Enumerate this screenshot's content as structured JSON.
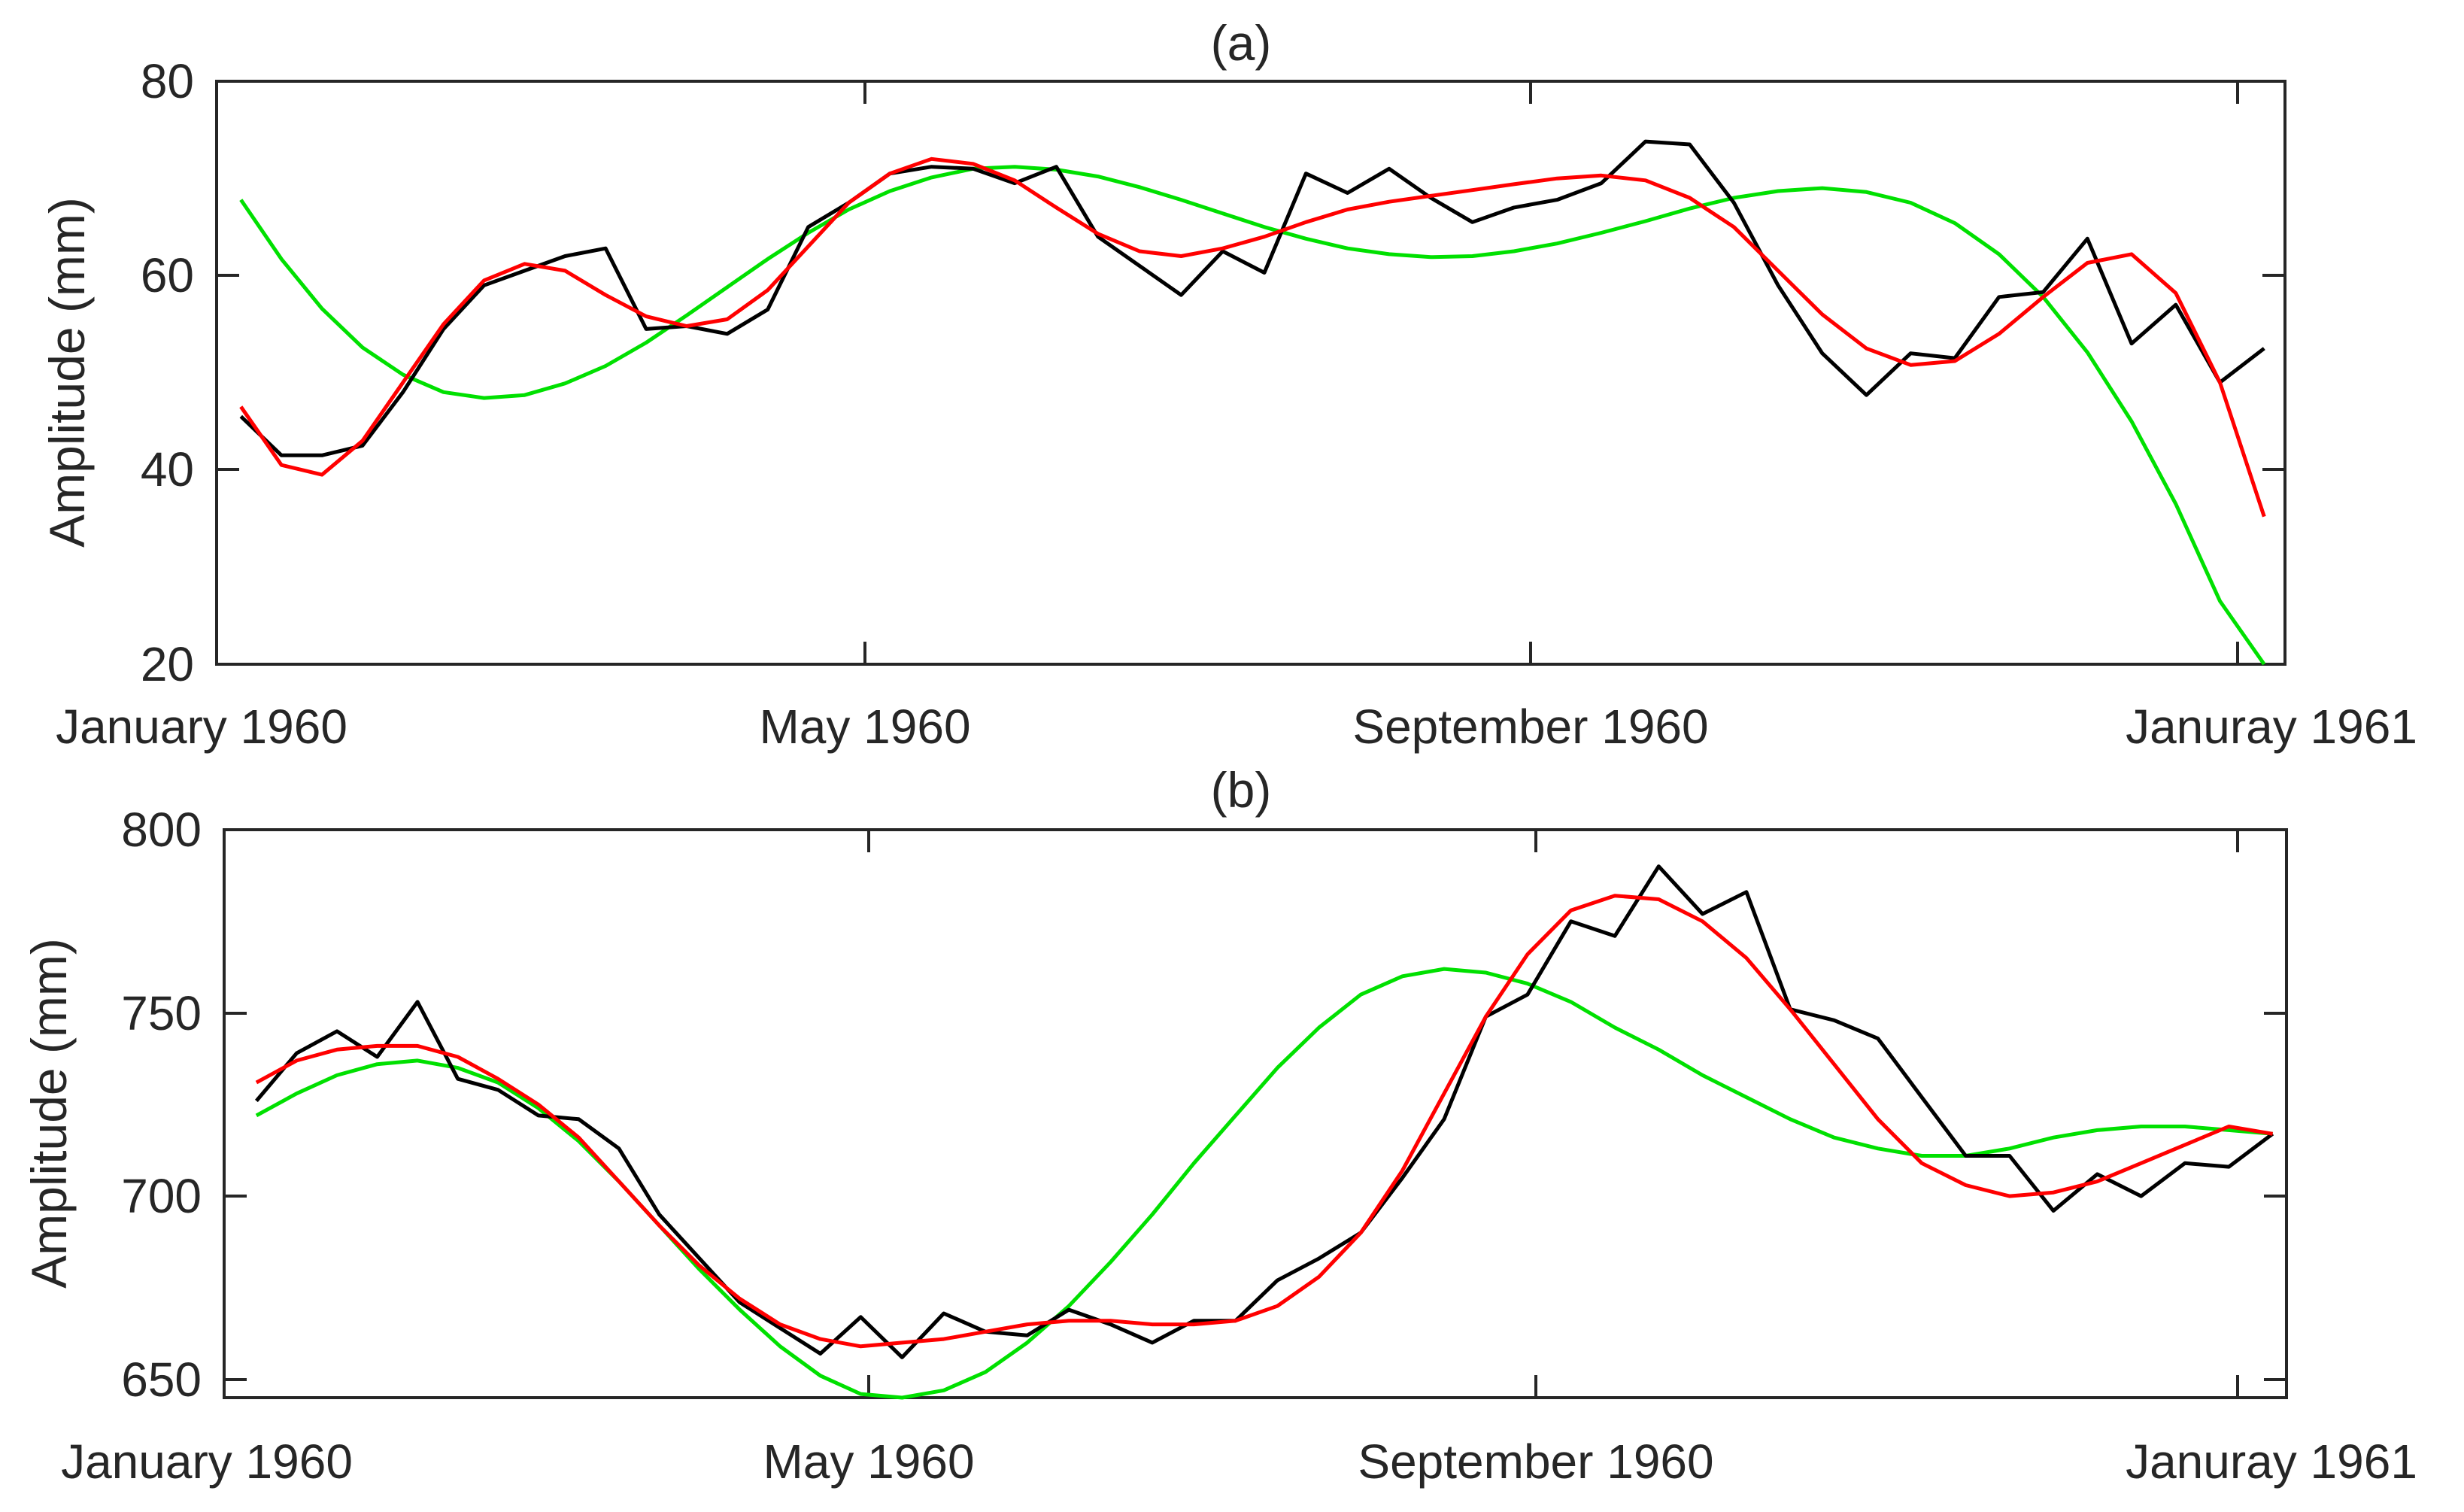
{
  "chart_data": [
    {
      "type": "line",
      "title": "(a)",
      "xlabel": "",
      "ylabel": "Amplitude (mm)",
      "ylim": [
        20,
        80
      ],
      "yticks": [
        20,
        40,
        60,
        80
      ],
      "xlim": [
        0,
        12
      ],
      "xticks": [
        0,
        4,
        8,
        12
      ],
      "xtick_labels": [
        "January 1960",
        "May 1960",
        "September 1960",
        "Januray 1961"
      ],
      "series": [
        {
          "name": "black",
          "color": "#000000",
          "x_start": 0.15,
          "x_step": 0.25,
          "values": [
            45.5,
            41.5,
            41.5,
            42.5,
            48,
            54.5,
            59,
            60.5,
            62,
            62.8,
            54.5,
            54.8,
            54,
            56.5,
            65,
            67.5,
            70.5,
            71.2,
            71,
            69.5,
            71.2,
            64,
            61,
            58,
            62.5,
            60.3,
            70.5,
            68.5,
            71,
            68,
            65.5,
            67,
            67.8,
            69.5,
            73.8,
            73.5,
            67.5,
            59,
            52,
            47.7,
            52,
            51.5,
            57.8,
            58.3,
            63.8,
            53,
            57,
            49,
            52.5
          ]
        },
        {
          "name": "red",
          "color": "#ff0000",
          "x_start": 0.15,
          "x_step": 0.25,
          "values": [
            46.5,
            40.5,
            39.5,
            43,
            49,
            55,
            59.5,
            61.2,
            60.5,
            58,
            55.8,
            54.8,
            55.5,
            58.5,
            63,
            67.5,
            70.5,
            72,
            71.5,
            69.8,
            67,
            64.3,
            62.5,
            62,
            62.8,
            64,
            65.5,
            66.8,
            67.6,
            68.2,
            68.8,
            69.4,
            70,
            70.3,
            69.8,
            68,
            65,
            60.5,
            56,
            52.5,
            50.8,
            51.2,
            54,
            57.8,
            61.3,
            62.2,
            58.2,
            49,
            35.2
          ]
        },
        {
          "name": "green",
          "color": "#00e000",
          "x_start": 0.15,
          "x_step": 0.25,
          "values": [
            67.8,
            61.7,
            56.6,
            52.6,
            49.8,
            48,
            47.4,
            47.7,
            48.9,
            50.7,
            53.1,
            55.9,
            58.8,
            61.7,
            64.4,
            66.8,
            68.7,
            70.1,
            71,
            71.2,
            70.9,
            70.2,
            69.1,
            67.8,
            66.4,
            65,
            63.8,
            62.8,
            62.2,
            61.9,
            62,
            62.5,
            63.3,
            64.4,
            65.6,
            66.9,
            68,
            68.7,
            69,
            68.6,
            67.5,
            65.4,
            62.2,
            57.8,
            52.1,
            45,
            36.5,
            26.5,
            20
          ]
        }
      ]
    },
    {
      "type": "line",
      "title": "(b)",
      "xlabel": "",
      "ylabel": "Amplitude (mm)",
      "ylim": [
        645,
        800
      ],
      "yticks": [
        650,
        700,
        750,
        800
      ],
      "xlim": [
        0,
        12
      ],
      "xticks": [
        0,
        4,
        8,
        12
      ],
      "xtick_labels": [
        "January 1960",
        "May 1960",
        "September 1960",
        "Januray 1961"
      ],
      "series": [
        {
          "name": "black",
          "color": "#000000",
          "x_start": 0.2,
          "x_step": 0.25,
          "values": [
            726,
            739,
            745,
            738,
            753,
            732,
            729,
            722,
            721,
            713,
            695,
            683,
            671,
            664,
            657,
            667,
            656,
            668,
            663,
            662,
            669,
            665,
            660,
            666,
            666,
            677,
            683,
            690,
            705,
            721,
            749,
            755,
            775,
            771,
            790,
            777,
            783,
            751,
            748,
            743,
            727,
            711,
            711,
            696,
            706,
            700,
            709,
            708,
            717
          ]
        },
        {
          "name": "red",
          "color": "#ff0000",
          "x_start": 0.2,
          "x_step": 0.25,
          "values": [
            731,
            737,
            740,
            741,
            741,
            738,
            732,
            725,
            716,
            704,
            692,
            681,
            672,
            665,
            661,
            659,
            660,
            661,
            663,
            665,
            666,
            666,
            665,
            665,
            666,
            670,
            678,
            690,
            707,
            728,
            749,
            766,
            778,
            782,
            781,
            775,
            765,
            751,
            736,
            721,
            709,
            703,
            700,
            701,
            704,
            709,
            714,
            719,
            717
          ]
        },
        {
          "name": "green",
          "color": "#00e000",
          "x_start": 0.2,
          "x_step": 0.25,
          "values": [
            722,
            728,
            733,
            736,
            737,
            735,
            731,
            724,
            715,
            704,
            692,
            680,
            669,
            659,
            651,
            646,
            645,
            647,
            652,
            660,
            670,
            682,
            695,
            709,
            722,
            735,
            746,
            755,
            760,
            762,
            761,
            758,
            753,
            746,
            740,
            733,
            727,
            721,
            716,
            713,
            711,
            711,
            713,
            716,
            718,
            719,
            719,
            718,
            717
          ]
        }
      ]
    }
  ]
}
